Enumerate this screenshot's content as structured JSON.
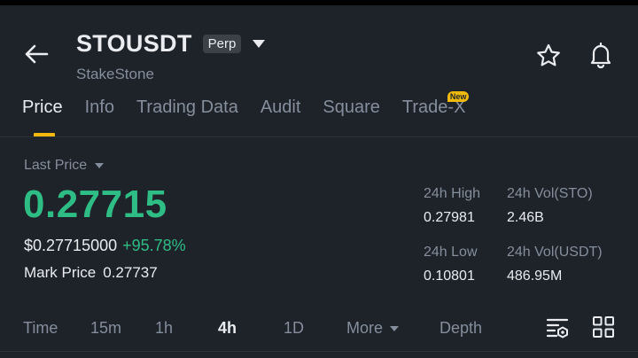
{
  "header": {
    "symbol": "STOUSDT",
    "badge": "Perp",
    "subname": "StakeStone"
  },
  "tabs": [
    {
      "label": "Price",
      "active": true
    },
    {
      "label": "Info"
    },
    {
      "label": "Trading Data"
    },
    {
      "label": "Audit"
    },
    {
      "label": "Square"
    },
    {
      "label": "Trade-X",
      "badge": "New"
    }
  ],
  "price": {
    "label": "Last Price",
    "value": "0.27715",
    "usd": "$0.27715000",
    "change": "+95.78%",
    "mark_label": "Mark Price",
    "mark_value": "0.27737"
  },
  "stats": {
    "high_label": "24h High",
    "high": "0.27981",
    "vol_base_label": "24h Vol(STO)",
    "vol_base": "2.46B",
    "low_label": "24h Low",
    "low": "0.10801",
    "vol_quote_label": "24h Vol(USDT)",
    "vol_quote": "486.95M"
  },
  "intervals": {
    "time": "Time",
    "m15": "15m",
    "h1": "1h",
    "h4": "4h",
    "d1": "1D",
    "more": "More",
    "depth": "Depth",
    "active": "4h"
  },
  "colors": {
    "background": "#1e2329",
    "up": "#2ebd85",
    "accent": "#f0b90b",
    "muted": "#848e9c",
    "text": "#eaecef"
  }
}
